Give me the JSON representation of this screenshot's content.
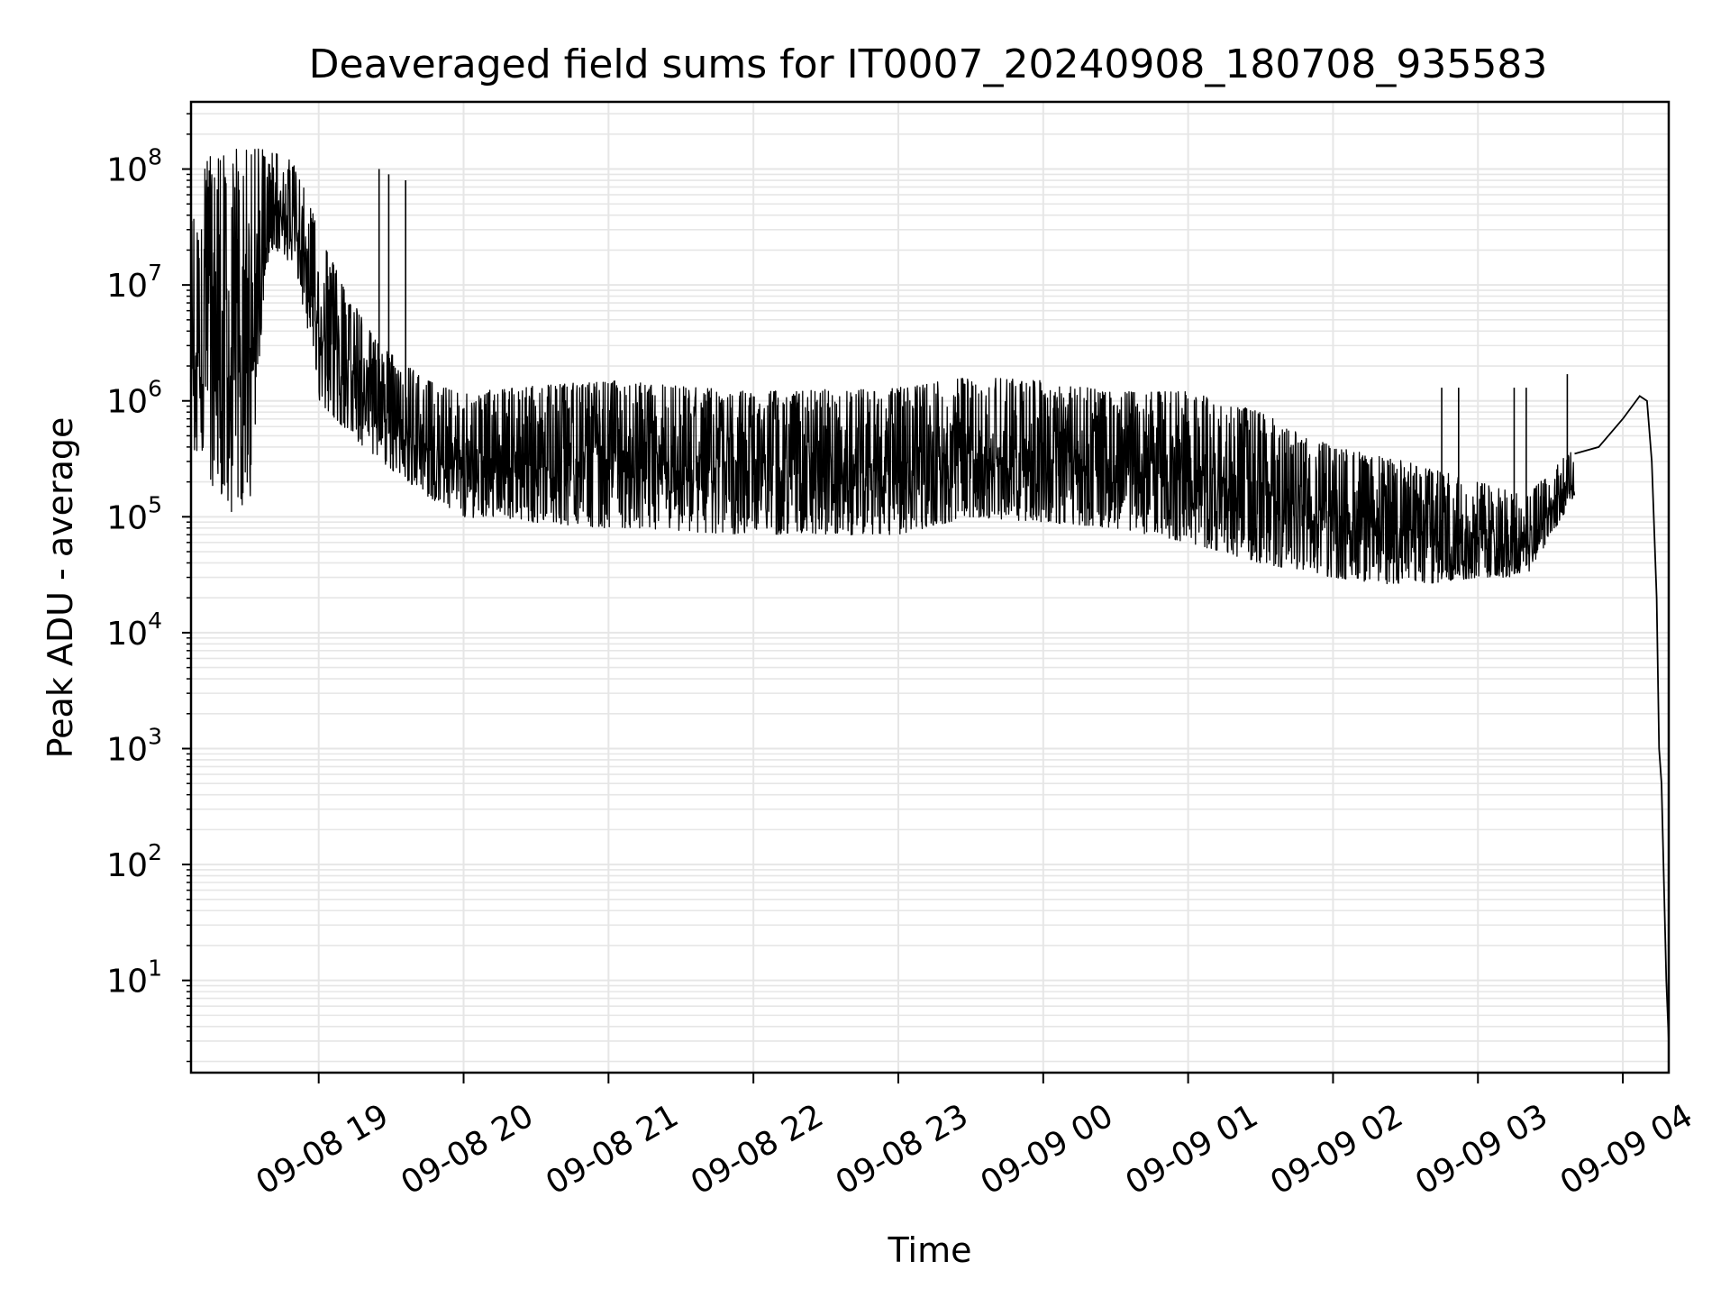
{
  "chart_data": {
    "type": "line",
    "title": "Deaveraged field sums for IT0007_20240908_180708_935583",
    "xlabel": "Time",
    "ylabel": "Peak ADU - average",
    "yscale": "log",
    "xlim": [
      "2024-09-08 18:07:08",
      "2024-09-09 04:19:00"
    ],
    "ylim": [
      1.6,
      380000000
    ],
    "x_ticks": [
      "09-08 19",
      "09-08 20",
      "09-08 21",
      "09-08 22",
      "09-08 23",
      "09-09 00",
      "09-09 01",
      "09-09 02",
      "09-09 03",
      "09-09 04"
    ],
    "y_ticks": [
      {
        "base": "10",
        "exp": "1",
        "value": 10
      },
      {
        "base": "10",
        "exp": "2",
        "value": 100
      },
      {
        "base": "10",
        "exp": "3",
        "value": 1000
      },
      {
        "base": "10",
        "exp": "4",
        "value": 10000
      },
      {
        "base": "10",
        "exp": "5",
        "value": 100000
      },
      {
        "base": "10",
        "exp": "6",
        "value": 1000000
      },
      {
        "base": "10",
        "exp": "7",
        "value": 10000000
      },
      {
        "base": "10",
        "exp": "8",
        "value": 100000000
      }
    ],
    "grid": true,
    "line_color": "#000000",
    "grid_color": "#e6e6e6",
    "series": [
      {
        "envelope": [
          {
            "t": "2024-09-08 18:07",
            "low": 400000,
            "high": 40000000
          },
          {
            "t": "2024-09-08 18:15",
            "low": 200000,
            "high": 140000000
          },
          {
            "t": "2024-09-08 18:25",
            "low": 100000,
            "high": 150000000
          },
          {
            "t": "2024-09-08 18:32",
            "low": 150000,
            "high": 150000000
          },
          {
            "t": "2024-09-08 18:38",
            "low": 15000000,
            "high": 150000000
          },
          {
            "t": "2024-09-08 18:45",
            "low": 20000000,
            "high": 140000000
          },
          {
            "t": "2024-09-08 18:52",
            "low": 10000000,
            "high": 100000000
          },
          {
            "t": "2024-09-08 19:00",
            "low": 1000000,
            "high": 30000000
          },
          {
            "t": "2024-09-08 19:10",
            "low": 600000,
            "high": 10000000
          },
          {
            "t": "2024-09-08 19:25",
            "low": 300000,
            "high": 3000000
          },
          {
            "t": "2024-09-08 19:45",
            "low": 150000,
            "high": 1500000
          },
          {
            "t": "2024-09-08 20:00",
            "low": 100000,
            "high": 1200000
          },
          {
            "t": "2024-09-08 21:00",
            "low": 80000,
            "high": 1500000
          },
          {
            "t": "2024-09-08 22:00",
            "low": 70000,
            "high": 1200000
          },
          {
            "t": "2024-09-08 23:00",
            "low": 70000,
            "high": 1300000
          },
          {
            "t": "2024-09-08 23:30",
            "low": 100000,
            "high": 1600000
          },
          {
            "t": "2024-09-09 00:00",
            "low": 90000,
            "high": 1500000
          },
          {
            "t": "2024-09-09 00:30",
            "low": 80000,
            "high": 1200000
          },
          {
            "t": "2024-09-09 01:00",
            "low": 60000,
            "high": 1200000
          },
          {
            "t": "2024-09-09 01:30",
            "low": 40000,
            "high": 800000
          },
          {
            "t": "2024-09-09 02:00",
            "low": 30000,
            "high": 400000
          },
          {
            "t": "2024-09-09 02:30",
            "low": 25000,
            "high": 300000
          },
          {
            "t": "2024-09-09 03:00",
            "low": 30000,
            "high": 200000
          },
          {
            "t": "2024-09-09 03:20",
            "low": 30000,
            "high": 150000
          },
          {
            "t": "2024-09-09 03:40",
            "low": 150000,
            "high": 400000
          }
        ],
        "spikes": [
          {
            "t": "2024-09-08 19:25",
            "value": 100000000
          },
          {
            "t": "2024-09-08 19:29",
            "value": 90000000
          },
          {
            "t": "2024-09-08 19:36",
            "value": 80000000
          },
          {
            "t": "2024-09-08 19:31",
            "value": 2000000
          },
          {
            "t": "2024-09-09 02:45",
            "value": 1300000
          },
          {
            "t": "2024-09-09 02:52",
            "value": 1300000
          },
          {
            "t": "2024-09-09 03:15",
            "value": 1300000
          },
          {
            "t": "2024-09-09 03:20",
            "value": 1300000
          },
          {
            "t": "2024-09-09 03:37",
            "value": 1700000
          }
        ],
        "tail": [
          {
            "t": "2024-09-09 03:40",
            "value": 350000
          },
          {
            "t": "2024-09-09 03:50",
            "value": 400000
          },
          {
            "t": "2024-09-09 04:00",
            "value": 700000
          },
          {
            "t": "2024-09-09 04:07",
            "value": 1100000
          },
          {
            "t": "2024-09-09 04:10",
            "value": 1000000
          },
          {
            "t": "2024-09-09 04:12",
            "value": 300000
          },
          {
            "t": "2024-09-09 04:14",
            "value": 20000
          },
          {
            "t": "2024-09-09 04:15",
            "value": 1000
          },
          {
            "t": "2024-09-09 04:16",
            "value": 500
          },
          {
            "t": "2024-09-09 04:18",
            "value": 10
          },
          {
            "t": "2024-09-09 04:19",
            "value": 3
          }
        ]
      }
    ]
  }
}
